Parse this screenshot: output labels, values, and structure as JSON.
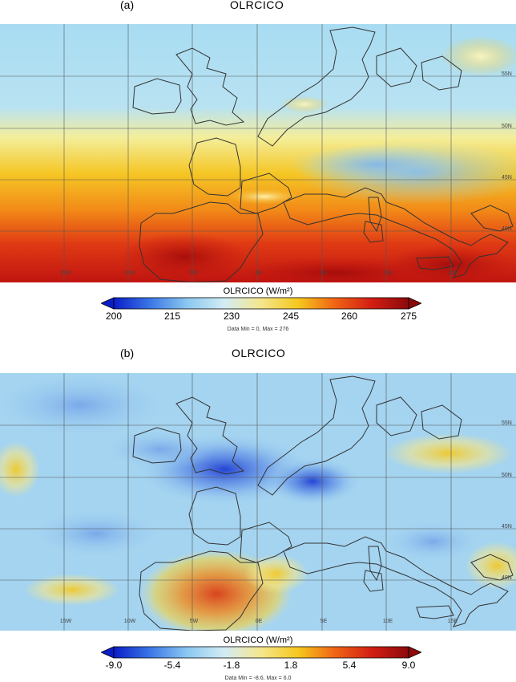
{
  "panels": [
    {
      "label": "(a)",
      "title": "OLRCICO",
      "lon_labels": [
        "15W",
        "10W",
        "5W",
        "0E",
        "5E",
        "10E",
        "15E"
      ],
      "lat_labels": [
        "40N",
        "45N",
        "50N",
        "55N"
      ],
      "colorbar": {
        "title": "OLRCICO (W/m²)",
        "ticks": [
          "200",
          "215",
          "230",
          "245",
          "260",
          "275"
        ],
        "min": 200,
        "max": 275,
        "colors": [
          "#0a1ec8",
          "#3c78e6",
          "#8cc8f0",
          "#d2ecf4",
          "#f5e68c",
          "#f5c81e",
          "#f06414",
          "#d21e14",
          "#8c0a0a"
        ]
      },
      "minmax": "Data Min = 0, Max = 276"
    },
    {
      "label": "(b)",
      "title": "OLRCICO",
      "lon_labels": [
        "15W",
        "10W",
        "5W",
        "0E",
        "5E",
        "10E",
        "15E"
      ],
      "lat_labels": [
        "40N",
        "45N",
        "50N",
        "55N"
      ],
      "colorbar": {
        "title": "OLRCICO (W/m²)",
        "ticks": [
          "-9.0",
          "-5.4",
          "-1.8",
          "1.8",
          "5.4",
          "9.0"
        ],
        "min": -9.0,
        "max": 9.0,
        "colors": [
          "#0a1ec8",
          "#3c78e6",
          "#8cc8f0",
          "#d2ecf4",
          "#f5e68c",
          "#f5c81e",
          "#f06414",
          "#d21e14",
          "#8c0a0a"
        ]
      },
      "minmax": "Data Min = -8.6, Max = 6.0"
    }
  ]
}
